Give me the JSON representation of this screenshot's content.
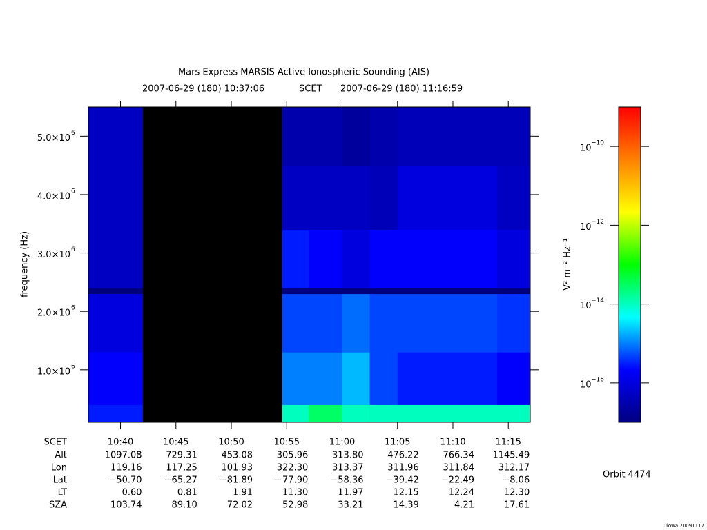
{
  "chart_data": {
    "type": "heatmap",
    "title": "Mars Express MARSIS Active Ionospheric Sounding (AIS)",
    "start_time": "2007-06-29 (180) 10:37:06",
    "time_system": "SCET",
    "end_time": "2007-06-29 (180) 11:16:59",
    "ylabel": "frequency (Hz)",
    "colorbar_label": "V² m⁻² Hz⁻¹",
    "orbit": "Orbit 4474",
    "footer": "Uiowa 20091117",
    "xlim": [
      637.1,
      676.98
    ],
    "xticks": [
      {
        "value": 640,
        "label": "10:40"
      },
      {
        "value": 645,
        "label": "10:45"
      },
      {
        "value": 650,
        "label": "10:50"
      },
      {
        "value": 655,
        "label": "10:55"
      },
      {
        "value": 660,
        "label": "11:00"
      },
      {
        "value": 665,
        "label": "11:05"
      },
      {
        "value": 670,
        "label": "11:10"
      },
      {
        "value": 675,
        "label": "11:15"
      }
    ],
    "ylim": [
      100000,
      5500000
    ],
    "yticks": [
      {
        "value": 1000000,
        "label": "1.0×10",
        "exponent": "6"
      },
      {
        "value": 2000000,
        "label": "2.0×10",
        "exponent": "6"
      },
      {
        "value": 3000000,
        "label": "3.0×10",
        "exponent": "6"
      },
      {
        "value": 4000000,
        "label": "4.0×10",
        "exponent": "6"
      },
      {
        "value": 5000000,
        "label": "5.0×10",
        "exponent": "6"
      }
    ],
    "zlim": [
      1e-17,
      1e-09
    ],
    "z_log": true,
    "zticks": [
      {
        "value": 1e-16,
        "label": "10",
        "exponent": "−16"
      },
      {
        "value": 1e-14,
        "label": "10",
        "exponent": "−14"
      },
      {
        "value": 1e-12,
        "label": "10",
        "exponent": "−12"
      },
      {
        "value": 1e-10,
        "label": "10",
        "exponent": "−10"
      }
    ],
    "colormap": [
      "#00007f",
      "#0000ff",
      "#00ffff",
      "#00ff00",
      "#ffff00",
      "#ff8000",
      "#ff0000"
    ],
    "x_edges": [
      637.1,
      642.0,
      654.6,
      657,
      660,
      662.5,
      665,
      670,
      674,
      676.98
    ],
    "y_edges": [
      100000,
      400000,
      1300000,
      2300000,
      2400000,
      3400000,
      4500000,
      5500000
    ],
    "z": [
      [
        3e-16,
        null,
        1e-14,
        3e-14,
        1e-14,
        1e-14,
        1e-14,
        1e-14,
        1e-14
      ],
      [
        2e-16,
        null,
        1e-15,
        1e-15,
        2e-15,
        5e-16,
        3e-16,
        3e-16,
        2e-16
      ],
      [
        1e-16,
        null,
        5e-16,
        5e-16,
        8e-16,
        5e-16,
        5e-16,
        5e-16,
        4e-16
      ],
      [
        1e-17,
        null,
        1e-17,
        1e-17,
        1e-17,
        1e-17,
        1e-17,
        1e-17,
        1e-17
      ],
      [
        5e-17,
        null,
        3e-16,
        2e-16,
        1e-16,
        2e-16,
        2e-16,
        2e-16,
        1e-16
      ],
      [
        5e-17,
        null,
        5e-17,
        5e-17,
        5e-17,
        4e-17,
        1e-16,
        1e-16,
        5e-17
      ],
      [
        5e-17,
        null,
        3e-17,
        3e-17,
        2e-17,
        3e-17,
        4e-17,
        4e-17,
        4e-17
      ]
    ],
    "ephemeris": {
      "time_row": "SCET",
      "rows": [
        {
          "name": "Alt",
          "values": [
            "1097.08",
            "729.31",
            "453.08",
            "305.96",
            "313.80",
            "476.22",
            "766.34",
            "1145.49"
          ]
        },
        {
          "name": "Lon",
          "values": [
            "119.16",
            "117.25",
            "101.93",
            "322.30",
            "313.37",
            "311.96",
            "311.84",
            "312.17"
          ]
        },
        {
          "name": "Lat",
          "values": [
            "−50.70",
            "−65.27",
            "−81.89",
            "−77.90",
            "−58.36",
            "−39.42",
            "−22.49",
            "−8.06"
          ]
        },
        {
          "name": "LT",
          "values": [
            "0.60",
            "0.81",
            "1.91",
            "11.30",
            "11.97",
            "12.15",
            "12.24",
            "12.30"
          ]
        },
        {
          "name": "SZA",
          "values": [
            "103.74",
            "89.10",
            "72.02",
            "52.98",
            "33.21",
            "14.39",
            "4.21",
            "17.61"
          ]
        }
      ]
    }
  }
}
